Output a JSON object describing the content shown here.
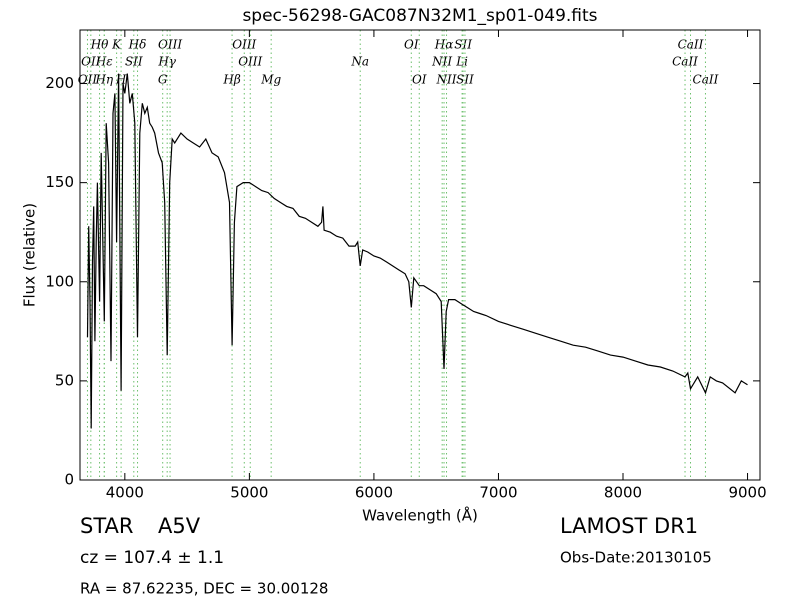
{
  "chart_data": {
    "type": "line",
    "title": "spec-56298-GAC087N32M1_sp01-049.fits",
    "x_label": "Wavelength (Å)",
    "y_label": "Flux (relative)",
    "xlim": [
      3640,
      9100
    ],
    "ylim": [
      0,
      227
    ],
    "xticks": [
      4000,
      5000,
      6000,
      7000,
      8000,
      9000
    ],
    "yticks": [
      0,
      50,
      100,
      150,
      200
    ],
    "x": [
      3700,
      3710,
      3720,
      3730,
      3740,
      3750,
      3760,
      3770,
      3780,
      3797,
      3810,
      3835,
      3850,
      3870,
      3889,
      3905,
      3920,
      3934,
      3950,
      3970,
      3985,
      4000,
      4020,
      4040,
      4060,
      4080,
      4102,
      4120,
      4140,
      4160,
      4180,
      4200,
      4220,
      4240,
      4270,
      4300,
      4320,
      4340,
      4360,
      4380,
      4400,
      4450,
      4500,
      4550,
      4600,
      4650,
      4700,
      4750,
      4800,
      4840,
      4861,
      4880,
      4900,
      4950,
      5000,
      5050,
      5100,
      5150,
      5200,
      5250,
      5300,
      5350,
      5400,
      5450,
      5500,
      5550,
      5580,
      5590,
      5600,
      5650,
      5700,
      5750,
      5800,
      5850,
      5870,
      5890,
      5910,
      5950,
      6000,
      6050,
      6100,
      6150,
      6200,
      6250,
      6280,
      6300,
      6320,
      6364,
      6400,
      6450,
      6500,
      6540,
      6563,
      6580,
      6600,
      6650,
      6700,
      6750,
      6800,
      6850,
      6900,
      7000,
      7100,
      7200,
      7300,
      7400,
      7500,
      7600,
      7700,
      7800,
      7900,
      8000,
      8100,
      8200,
      8300,
      8400,
      8498,
      8520,
      8542,
      8600,
      8662,
      8700,
      8750,
      8800,
      8900,
      8950,
      9000
    ],
    "series": [
      {
        "color": "#000000",
        "values": [
          72,
          128,
          90,
          26,
          110,
          138,
          70,
          120,
          150,
          90,
          165,
          80,
          180,
          160,
          60,
          185,
          195,
          120,
          205,
          45,
          200,
          195,
          205,
          190,
          195,
          180,
          72,
          175,
          190,
          185,
          188,
          180,
          178,
          175,
          165,
          160,
          140,
          63,
          150,
          172,
          170,
          175,
          172,
          170,
          168,
          172,
          165,
          163,
          155,
          140,
          68,
          130,
          148,
          150,
          150,
          148,
          146,
          145,
          142,
          140,
          138,
          137,
          133,
          132,
          130,
          128,
          130,
          138,
          126,
          125,
          123,
          122,
          118,
          118,
          120,
          108,
          116,
          115,
          113,
          112,
          110,
          108,
          106,
          104,
          100,
          87,
          102,
          98,
          98,
          96,
          94,
          90,
          56,
          85,
          91,
          91,
          89,
          87,
          85,
          84,
          83,
          80,
          78,
          76,
          74,
          72,
          70,
          68,
          67,
          65,
          63,
          62,
          60,
          58,
          57,
          55,
          52,
          54,
          46,
          52,
          44,
          52,
          50,
          49,
          44,
          50,
          48
        ]
      }
    ],
    "id_line_color": "#6cbf6c",
    "line_id_rows": [
      [
        {
          "label": "Hθ",
          "wavelength": 3797
        },
        {
          "label": "K",
          "wavelength": 3934
        },
        {
          "label": "Hδ",
          "wavelength": 4102
        },
        {
          "label": "OIII",
          "wavelength": 4363
        },
        {
          "label": "OIII",
          "wavelength": 4959
        },
        {
          "label": "OI",
          "wavelength": 6300
        },
        {
          "label": "Hα",
          "wavelength": 6563
        },
        {
          "label": "SII",
          "wavelength": 6716
        },
        {
          "label": "CaII",
          "wavelength": 8542
        }
      ],
      [
        {
          "label": "OII",
          "wavelength": 3727
        },
        {
          "label": "Hε",
          "wavelength": 3835
        },
        {
          "label": "SII",
          "wavelength": 4072
        },
        {
          "label": "Hγ",
          "wavelength": 4340
        },
        {
          "label": "OIII",
          "wavelength": 5007
        },
        {
          "label": "Na",
          "wavelength": 5890
        },
        {
          "label": "NII",
          "wavelength": 6548
        },
        {
          "label": "Li",
          "wavelength": 6708
        },
        {
          "label": "CaII",
          "wavelength": 8498
        }
      ],
      [
        {
          "label": "OII",
          "wavelength": 3700
        },
        {
          "label": "Hη",
          "wavelength": 3835
        },
        {
          "label": "H",
          "wavelength": 3970
        },
        {
          "label": "G",
          "wavelength": 4304
        },
        {
          "label": "Hβ",
          "wavelength": 4861
        },
        {
          "label": "Mg",
          "wavelength": 5175
        },
        {
          "label": "OI",
          "wavelength": 6364
        },
        {
          "label": "NII",
          "wavelength": 6583
        },
        {
          "label": "SII",
          "wavelength": 6731
        },
        {
          "label": "CaII",
          "wavelength": 8662
        }
      ]
    ]
  },
  "footer": {
    "object_class": "STAR",
    "subclass": "A5V",
    "redshift": "cz = 107.4 ± 1.1",
    "coords": "RA = 87.62235, DEC = 30.00128",
    "survey": "LAMOST DR1",
    "obs_date": "Obs-Date:20130105"
  }
}
